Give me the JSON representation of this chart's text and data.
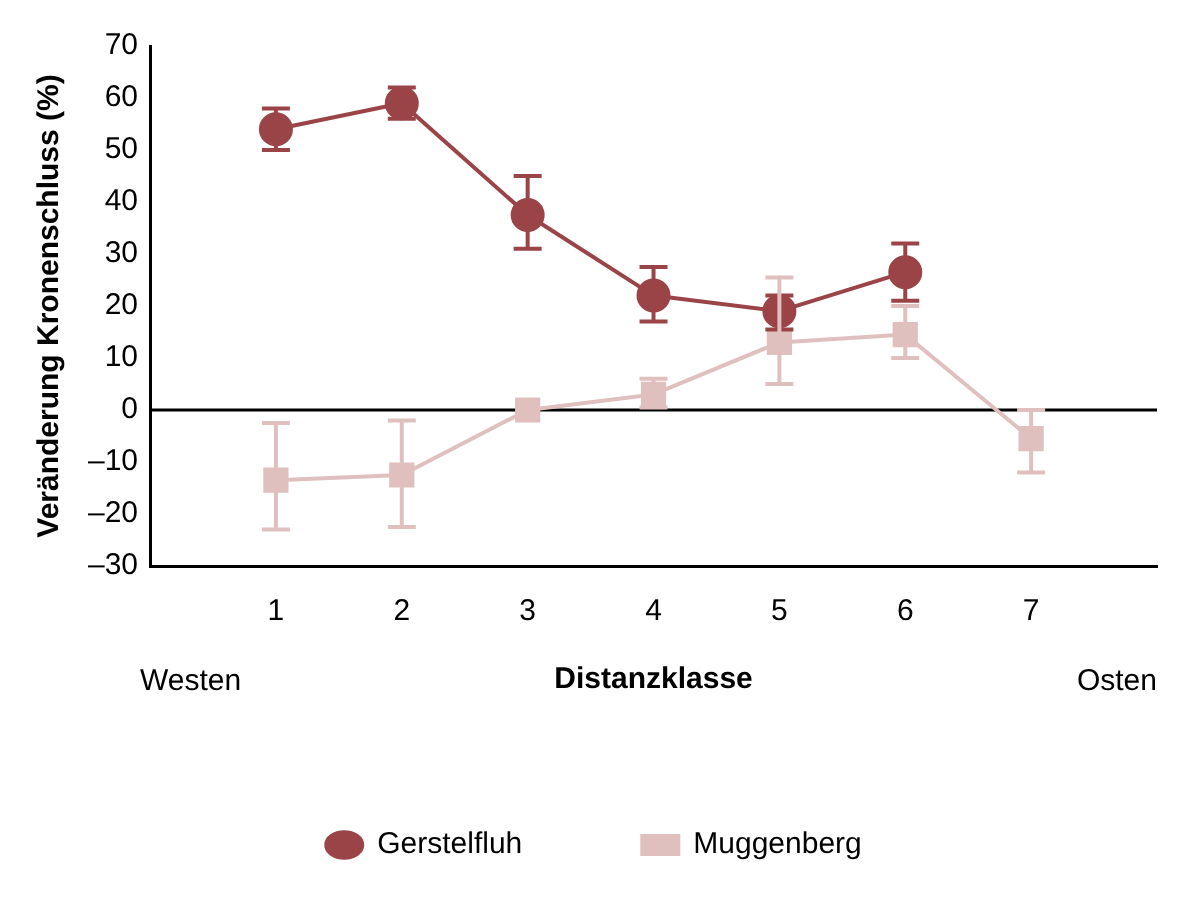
{
  "chart_data": {
    "type": "line",
    "xlabel": "Distanzklasse",
    "ylabel": "Veränderung Kronenschluss (%)",
    "x": [
      1,
      2,
      3,
      4,
      5,
      6,
      7
    ],
    "xlim": [
      0,
      8
    ],
    "xticks": [
      1,
      2,
      3,
      4,
      5,
      6,
      7
    ],
    "ylim": [
      -30,
      70
    ],
    "yticks": [
      {
        "value": -30,
        "label": "–30"
      },
      {
        "value": -20,
        "label": "–20"
      },
      {
        "value": -10,
        "label": "–10"
      },
      0,
      10,
      20,
      30,
      40,
      50,
      60,
      70
    ],
    "grid": false,
    "legend": "bottom",
    "line_style": "solid",
    "annotations": [
      "Westen",
      "Osten"
    ],
    "ref_lines": [
      {
        "axis": "y",
        "value": 0,
        "color": "#000000"
      }
    ],
    "series": [
      {
        "name": "Gerstelfluh",
        "color": "#9b4448",
        "marker": "circle",
        "values": [
          54,
          59,
          37.5,
          22,
          19,
          26.5,
          null
        ],
        "errors": [
          [
            50,
            58
          ],
          [
            56,
            62
          ],
          [
            31,
            45
          ],
          [
            17,
            27.5
          ],
          [
            15.5,
            22
          ],
          [
            21,
            32
          ],
          null
        ]
      },
      {
        "name": "Muggenberg",
        "color": "#e0c0bf",
        "marker": "square",
        "values": [
          -13.5,
          -12.5,
          0,
          3,
          13,
          14.5,
          -5.5
        ],
        "errors": [
          [
            -23,
            -2.5
          ],
          [
            -22.5,
            -2
          ],
          null,
          [
            0.5,
            6
          ],
          [
            5,
            25.5
          ],
          [
            10,
            20
          ],
          [
            -12,
            0
          ]
        ]
      }
    ]
  }
}
